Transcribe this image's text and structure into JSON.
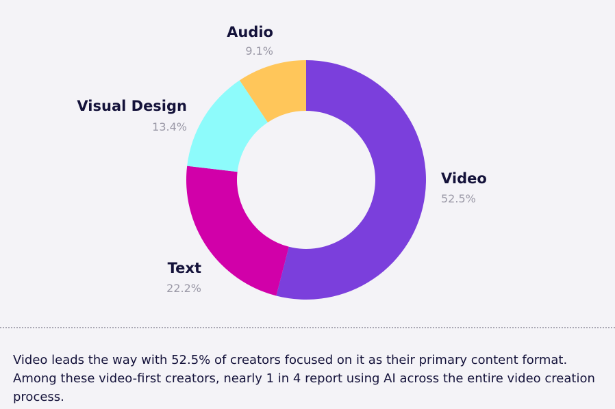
{
  "chart_data": {
    "type": "pie",
    "slices": [
      {
        "label": "Video",
        "value": 52.5,
        "value_label": "52.5%",
        "color": "#7b3fdc"
      },
      {
        "label": "Text",
        "value": 22.2,
        "value_label": "22.2%",
        "color": "#d100a9"
      },
      {
        "label": "Visual Design",
        "value": 13.4,
        "value_label": "13.4%",
        "color": "#8dfbfb"
      },
      {
        "label": "Audio",
        "value": 9.1,
        "value_label": "9.1%",
        "color": "#ffc65a"
      }
    ],
    "style": "donut"
  },
  "caption": "Video leads the way with 52.5% of creators focused on it as their primary content format. Among these video-first creators, nearly 1 in 4 report using AI across the entire video creation process."
}
